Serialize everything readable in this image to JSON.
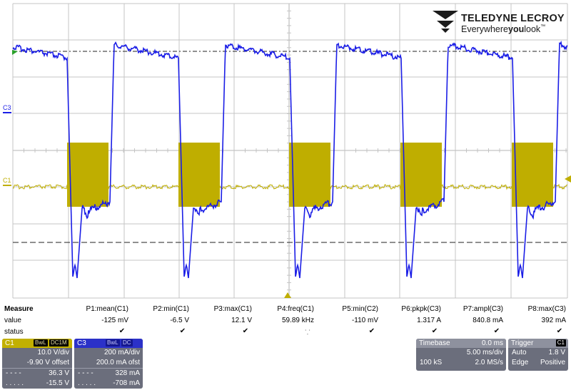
{
  "logo": {
    "brand": "TELEDYNE LECROY",
    "tagline_a": "Everywhere",
    "tagline_b": "you",
    "tagline_c": "look",
    "tm": "™"
  },
  "colors": {
    "c1": "#bfae00",
    "c3": "#1b1ee6",
    "grid": "#bfbfbf"
  },
  "channel_markers": {
    "c1": "C1",
    "c3": "C3"
  },
  "measure": {
    "title": "Measure",
    "row_value": "value",
    "row_status": "status",
    "items": [
      {
        "label": "P1:mean(C1)",
        "value": "-125 mV"
      },
      {
        "label": "P2:min(C1)",
        "value": "-6.5 V"
      },
      {
        "label": "P3:max(C1)",
        "value": "12.1 V"
      },
      {
        "label": "P4:freq(C1)",
        "value": "59.89 kHz"
      },
      {
        "label": "P5:min(C2)",
        "value": "-110 mV"
      },
      {
        "label": "P6:pkpk(C3)",
        "value": "1.317 A"
      },
      {
        "label": "P7:ampl(C3)",
        "value": "840.8 mA"
      },
      {
        "label": "P8:max(C3)",
        "value": "392 mA"
      }
    ]
  },
  "c1_panel": {
    "name": "C1",
    "badge1": "BwL",
    "badge2": "DC1M",
    "vdiv": "10.0 V/div",
    "offset": "-9.90 V offset",
    "max_value": "36.3 V",
    "min_value": "-15.5 V"
  },
  "c3_panel": {
    "name": "C3",
    "badge1": "BwL",
    "badge2": "DC",
    "vdiv": "200 mA/div",
    "offset": "200.0 mA ofst",
    "max_value": "328 mA",
    "min_value": "-708 mA"
  },
  "timebase": {
    "title": "Timebase",
    "delay": "0.0 ms",
    "tdiv": "5.00 ms/div",
    "samples": "100 kS",
    "rate": "2.0 MS/s"
  },
  "trigger": {
    "title": "Trigger",
    "channel": "C1",
    "mode": "Auto",
    "level": "1.8 V",
    "type": "Edge",
    "slope": "Positive"
  }
}
